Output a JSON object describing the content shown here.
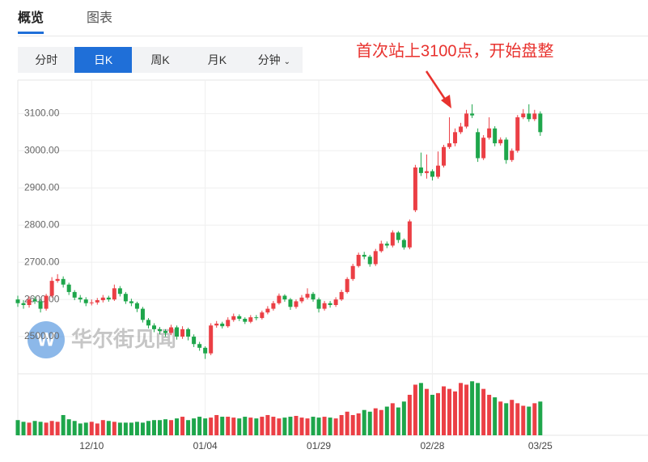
{
  "tabs": [
    "概览",
    "图表"
  ],
  "buttons": [
    "分时",
    "日K",
    "周K",
    "月K",
    "分钟"
  ],
  "active_button": 1,
  "watermark": "华尔街见闻",
  "chart_data": {
    "type": "candlestick",
    "annotation": "首次站上3100点，开始盘整",
    "up_color": "#eb3f45",
    "down_color": "#1ea64b",
    "ylim": [
      2400,
      3190
    ],
    "yticks": [
      {
        "value": 2500,
        "label": "2500.00"
      },
      {
        "value": 2600,
        "label": "2600.00"
      },
      {
        "value": 2700,
        "label": "2700.00"
      },
      {
        "value": 2800,
        "label": "2800.00"
      },
      {
        "value": 2900,
        "label": "2900.00"
      },
      {
        "value": 3000,
        "label": "3000.00"
      },
      {
        "value": 3100,
        "label": "3100.00"
      }
    ],
    "grid": true,
    "volume_lim": [
      0,
      70
    ],
    "categories": [
      null,
      null,
      null,
      null,
      null,
      null,
      null,
      null,
      null,
      null,
      null,
      null,
      null,
      "12/10",
      null,
      null,
      null,
      null,
      null,
      null,
      null,
      null,
      null,
      null,
      null,
      null,
      null,
      null,
      null,
      null,
      null,
      null,
      null,
      "01/04",
      null,
      null,
      null,
      null,
      null,
      null,
      null,
      null,
      null,
      null,
      null,
      null,
      null,
      null,
      null,
      null,
      null,
      null,
      null,
      "01/29",
      null,
      null,
      null,
      null,
      null,
      null,
      null,
      null,
      null,
      null,
      null,
      null,
      null,
      null,
      null,
      null,
      null,
      null,
      null,
      "02/28",
      null,
      null,
      null,
      null,
      null,
      null,
      null,
      null,
      null,
      null,
      null,
      null,
      null,
      null,
      null,
      null,
      null,
      null,
      "03/25"
    ],
    "open": [
      2600,
      2590,
      2585,
      2600,
      2595,
      2575,
      2610,
      2650,
      2655,
      2640,
      2620,
      2605,
      2600,
      2590,
      2592,
      2598,
      2605,
      2600,
      2630,
      2615,
      2595,
      2590,
      2575,
      2545,
      2530,
      2520,
      2515,
      2510,
      2525,
      2500,
      2520,
      2500,
      2480,
      2470,
      2455,
      2530,
      2535,
      2528,
      2545,
      2555,
      2548,
      2540,
      2552,
      2550,
      2565,
      2575,
      2590,
      2610,
      2600,
      2580,
      2595,
      2605,
      2615,
      2600,
      2575,
      2590,
      2585,
      2600,
      2620,
      2655,
      2690,
      2720,
      2715,
      2695,
      2730,
      2750,
      2745,
      2780,
      2760,
      2740,
      2840,
      2955,
      2940,
      2945,
      2930,
      2960,
      3010,
      3020,
      3050,
      3065,
      3100,
      3050,
      2980,
      3035,
      3060,
      3020,
      3030,
      2975,
      3000,
      3090,
      3100,
      3085,
      3100
    ],
    "high": [
      2610,
      2598,
      2608,
      2608,
      2600,
      2615,
      2660,
      2668,
      2662,
      2645,
      2625,
      2612,
      2606,
      2600,
      2604,
      2612,
      2610,
      2640,
      2636,
      2620,
      2602,
      2594,
      2580,
      2550,
      2536,
      2526,
      2520,
      2532,
      2530,
      2528,
      2524,
      2506,
      2486,
      2474,
      2536,
      2542,
      2540,
      2552,
      2562,
      2560,
      2552,
      2558,
      2558,
      2570,
      2582,
      2596,
      2616,
      2614,
      2604,
      2600,
      2612,
      2630,
      2620,
      2605,
      2596,
      2596,
      2606,
      2626,
      2660,
      2696,
      2726,
      2728,
      2720,
      2736,
      2758,
      2756,
      2786,
      2784,
      2764,
      2815,
      2962,
      2995,
      2990,
      2950,
      2998,
      3016,
      3090,
      3060,
      3075,
      3110,
      3125,
      3060,
      3042,
      3090,
      3066,
      3036,
      3036,
      3006,
      3096,
      3112,
      3125,
      3110,
      3106
    ],
    "low": [
      2580,
      2575,
      2578,
      2588,
      2565,
      2570,
      2605,
      2645,
      2632,
      2612,
      2598,
      2592,
      2582,
      2584,
      2586,
      2592,
      2594,
      2596,
      2608,
      2588,
      2582,
      2566,
      2538,
      2522,
      2512,
      2506,
      2500,
      2504,
      2492,
      2494,
      2490,
      2472,
      2462,
      2440,
      2450,
      2524,
      2522,
      2524,
      2540,
      2542,
      2534,
      2536,
      2544,
      2546,
      2560,
      2570,
      2586,
      2594,
      2572,
      2575,
      2590,
      2600,
      2594,
      2565,
      2570,
      2578,
      2580,
      2596,
      2616,
      2650,
      2686,
      2708,
      2688,
      2690,
      2726,
      2738,
      2740,
      2752,
      2734,
      2735,
      2835,
      2932,
      2925,
      2920,
      2925,
      2955,
      3005,
      3012,
      3045,
      3060,
      3088,
      2970,
      2975,
      3030,
      3012,
      3014,
      2965,
      2970,
      2995,
      3085,
      3078,
      3080,
      3040
    ],
    "close": [
      2590,
      2585,
      2600,
      2595,
      2575,
      2610,
      2650,
      2655,
      2640,
      2620,
      2605,
      2600,
      2590,
      2592,
      2598,
      2605,
      2600,
      2630,
      2615,
      2595,
      2590,
      2575,
      2545,
      2530,
      2520,
      2515,
      2510,
      2525,
      2500,
      2520,
      2500,
      2480,
      2470,
      2455,
      2530,
      2535,
      2528,
      2545,
      2555,
      2548,
      2540,
      2552,
      2550,
      2565,
      2575,
      2590,
      2610,
      2600,
      2580,
      2595,
      2605,
      2615,
      2600,
      2575,
      2590,
      2585,
      2600,
      2620,
      2655,
      2690,
      2720,
      2715,
      2695,
      2730,
      2750,
      2745,
      2780,
      2760,
      2740,
      2810,
      2955,
      2940,
      2945,
      2930,
      2960,
      3010,
      3020,
      3050,
      3065,
      3100,
      3095,
      2980,
      3035,
      3060,
      3020,
      3030,
      2975,
      3000,
      3090,
      3100,
      3085,
      3100,
      3050
    ],
    "volume": [
      18,
      16,
      15,
      17,
      16,
      15,
      17,
      16,
      24,
      19,
      17,
      14,
      15,
      16,
      14,
      18,
      17,
      16,
      15,
      15,
      15,
      16,
      15,
      17,
      18,
      18,
      19,
      18,
      20,
      22,
      18,
      20,
      22,
      20,
      21,
      24,
      22,
      22,
      21,
      20,
      22,
      21,
      20,
      22,
      24,
      22,
      20,
      21,
      22,
      23,
      21,
      20,
      22,
      21,
      22,
      21,
      20,
      24,
      28,
      24,
      26,
      30,
      28,
      32,
      30,
      34,
      38,
      33,
      40,
      48,
      60,
      62,
      55,
      48,
      50,
      58,
      55,
      52,
      62,
      60,
      64,
      62,
      55,
      48,
      45,
      40,
      38,
      42,
      38,
      35,
      34,
      38,
      40
    ]
  }
}
